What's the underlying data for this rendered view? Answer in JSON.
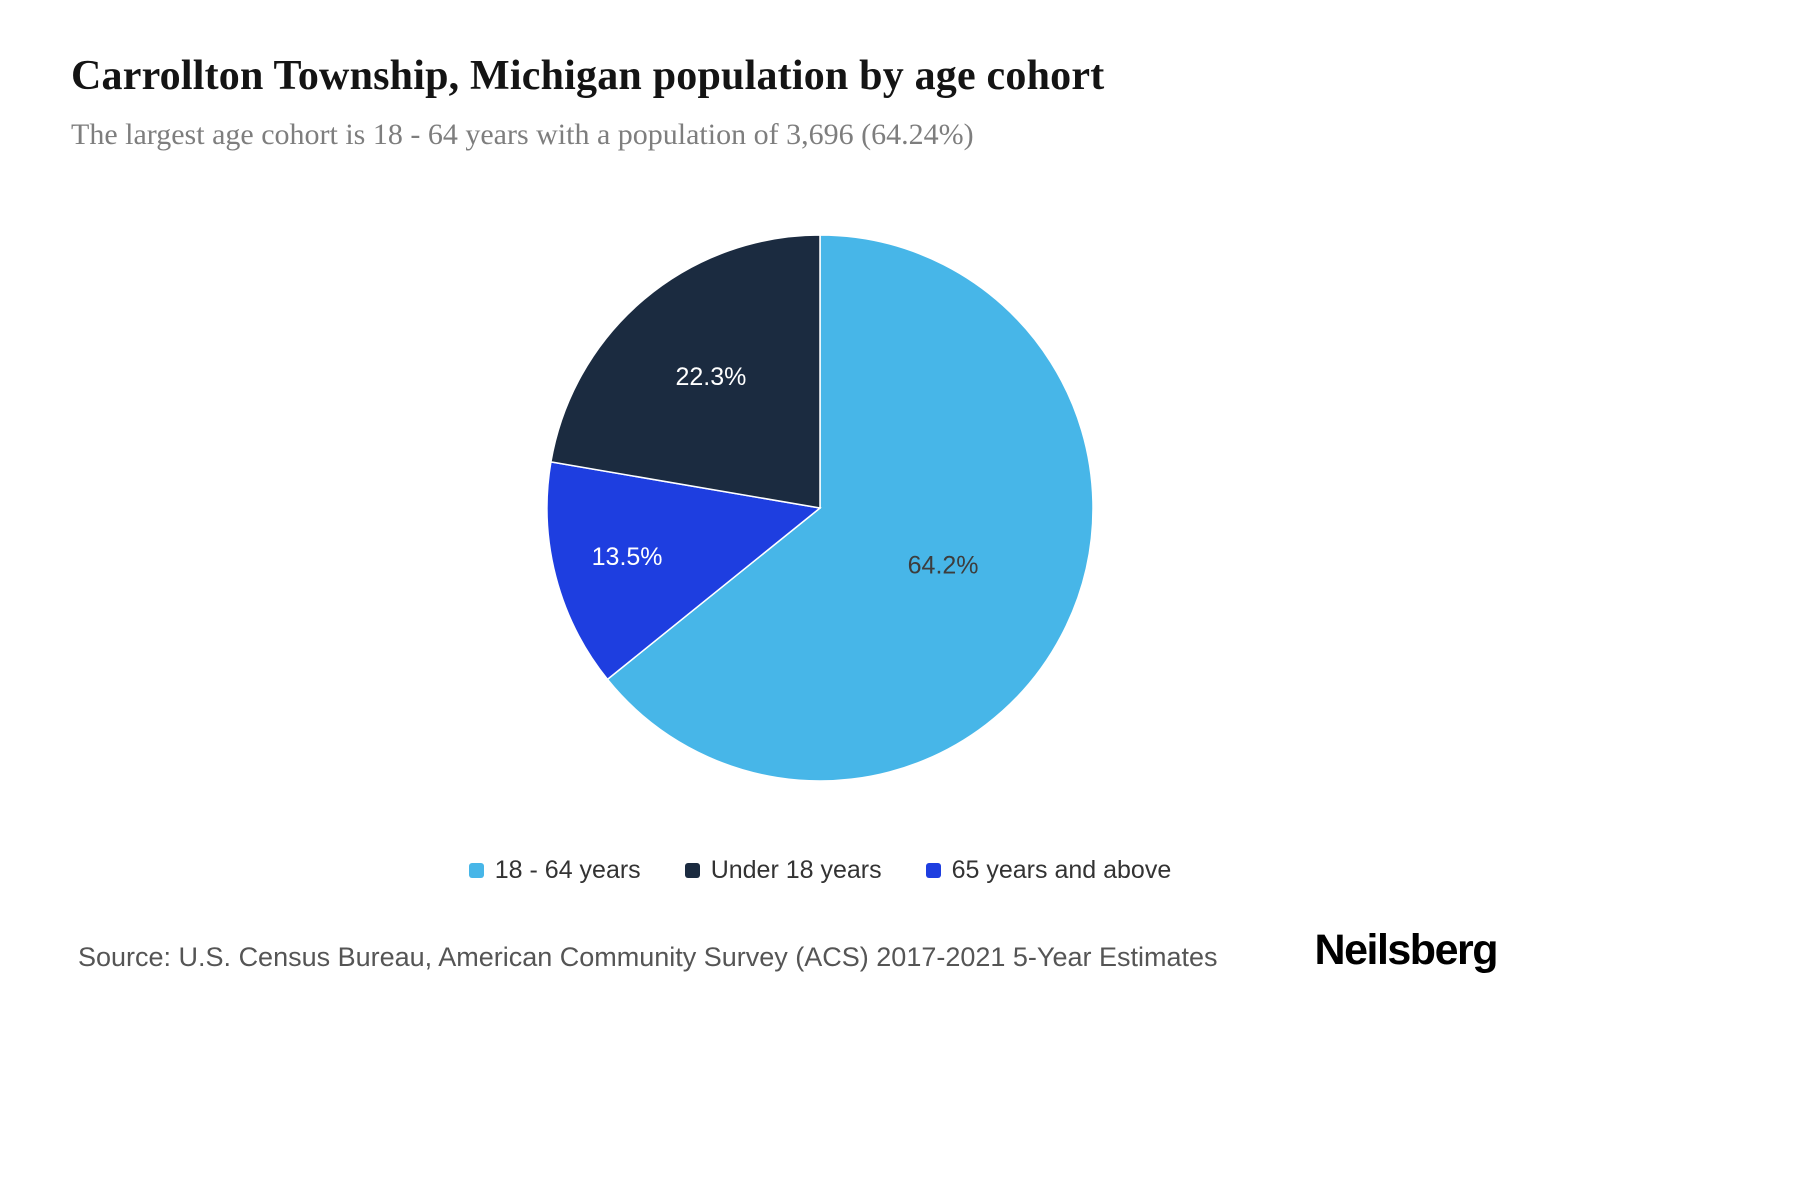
{
  "header": {
    "title": "Carrollton Township, Michigan population by age cohort",
    "subtitle": "The largest age cohort is 18 - 64 years with a population of 3,696 (64.24%)"
  },
  "chart_data": {
    "type": "pie",
    "title": "Carrollton Township, Michigan population by age cohort",
    "start_angle_deg": 0,
    "direction": "clockwise",
    "slices": [
      {
        "label": "18 - 64 years",
        "value": 64.2,
        "display": "64.2%",
        "color": "#47b6e8",
        "label_color": "#3d3d3d"
      },
      {
        "label": "65 years and above",
        "value": 13.5,
        "display": "13.5%",
        "color": "#1e3ee0",
        "label_color": "#ffffff"
      },
      {
        "label": "Under 18 years",
        "value": 22.3,
        "display": "22.3%",
        "color": "#1b2b40",
        "label_color": "#ffffff"
      }
    ],
    "legend": [
      {
        "label": "18 - 64 years",
        "color": "#47b6e8"
      },
      {
        "label": "Under 18 years",
        "color": "#1b2b40"
      },
      {
        "label": "65 years and above",
        "color": "#1e3ee0"
      }
    ]
  },
  "footer": {
    "source": "Source: U.S. Census Bureau, American Community Survey (ACS) 2017-2021 5-Year Estimates",
    "brand": "Neilsberg"
  }
}
